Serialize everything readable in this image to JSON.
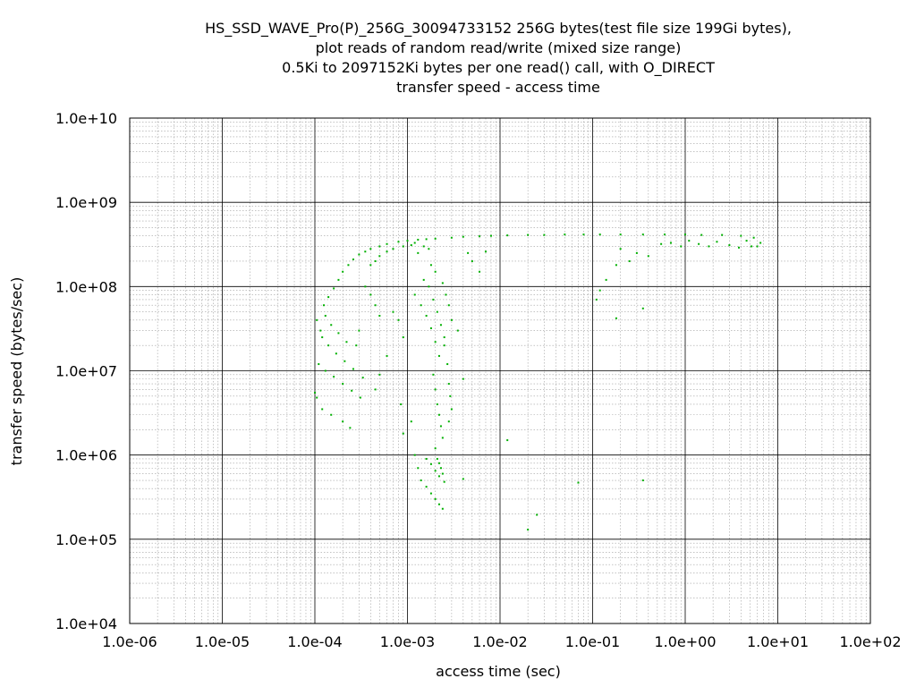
{
  "chart_data": {
    "type": "scatter",
    "title_lines": [
      "HS_SSD_WAVE_Pro(P)_256G_30094733152 256G bytes(test file size 199Gi bytes),",
      "plot reads of random read/write (mixed size range)",
      "0.5Ki to 2097152Ki bytes per one read() call, with O_DIRECT",
      "transfer speed - access time"
    ],
    "xlabel": "access time (sec)",
    "ylabel": "transfer speed (bytes/sec)",
    "x_scale": "log",
    "y_scale": "log",
    "xlim": [
      1e-06,
      100
    ],
    "ylim": [
      10000,
      10000000000
    ],
    "x_tick_labels": [
      "1.0e-06",
      "1.0e-05",
      "1.0e-04",
      "1.0e-03",
      "1.0e-02",
      "1.0e-01",
      "1.0e+00",
      "1.0e+01",
      "1.0e+02"
    ],
    "y_tick_labels": [
      "1.0e+04",
      "1.0e+05",
      "1.0e+06",
      "1.0e+07",
      "1.0e+08",
      "1.0e+09",
      "1.0e+10"
    ],
    "grid": true,
    "grid_minor": true,
    "point_color": "#00b000",
    "series": [
      {
        "points": [
          [
            0.0001,
            5500000
          ],
          [
            0.000105,
            4800000
          ],
          [
            0.00012,
            3500000
          ],
          [
            0.00015,
            3000000
          ],
          [
            0.0002,
            2500000
          ],
          [
            0.00024,
            2100000
          ],
          [
            0.00011,
            12000000
          ],
          [
            0.00013,
            10000000
          ],
          [
            0.00016,
            8500000
          ],
          [
            0.0002,
            7000000
          ],
          [
            0.00025,
            5800000
          ],
          [
            0.00031,
            4800000
          ],
          [
            0.00012,
            25000000
          ],
          [
            0.00014,
            20000000
          ],
          [
            0.00017,
            16000000
          ],
          [
            0.00021,
            13000000
          ],
          [
            0.00026,
            10500000
          ],
          [
            0.00033,
            8300000
          ],
          [
            0.000105,
            40000000
          ],
          [
            0.000115,
            30000000
          ],
          [
            0.00013,
            45000000
          ],
          [
            0.00015,
            35000000
          ],
          [
            0.00018,
            28000000
          ],
          [
            0.00022,
            22000000
          ],
          [
            0.000125,
            60000000
          ],
          [
            0.00014,
            75000000
          ],
          [
            0.00016,
            95000000
          ],
          [
            0.00018,
            120000000
          ],
          [
            0.0002,
            150000000
          ],
          [
            0.00023,
            180000000
          ],
          [
            0.00026,
            210000000
          ],
          [
            0.0003,
            240000000
          ],
          [
            0.00035,
            260000000
          ],
          [
            0.0004,
            280000000
          ],
          [
            0.0005,
            300000000
          ],
          [
            0.0006,
            320000000
          ],
          [
            0.0008,
            340000000
          ],
          [
            0.001,
            350000000
          ],
          [
            0.0013,
            360000000
          ],
          [
            0.0016,
            365000000
          ],
          [
            0.002,
            370000000
          ],
          [
            0.003,
            380000000
          ],
          [
            0.004,
            390000000
          ],
          [
            0.006,
            395000000
          ],
          [
            0.008,
            400000000
          ],
          [
            0.012,
            405000000
          ],
          [
            0.02,
            410000000
          ],
          [
            0.03,
            410000000
          ],
          [
            0.05,
            415000000
          ],
          [
            0.08,
            415000000
          ],
          [
            0.12,
            415000000
          ],
          [
            0.2,
            415000000
          ],
          [
            0.35,
            415000000
          ],
          [
            0.6,
            415000000
          ],
          [
            1.0,
            415000000
          ],
          [
            1.5,
            410000000
          ],
          [
            2.5,
            410000000
          ],
          [
            4.0,
            400000000
          ],
          [
            5.5,
            380000000
          ],
          [
            6.5,
            330000000
          ],
          [
            1.1,
            350000000
          ],
          [
            1.4,
            320000000
          ],
          [
            1.8,
            300000000
          ],
          [
            2.2,
            340000000
          ],
          [
            3.0,
            310000000
          ],
          [
            3.8,
            290000000
          ],
          [
            4.6,
            350000000
          ],
          [
            5.2,
            300000000
          ],
          [
            6.0,
            300000000
          ],
          [
            0.55,
            320000000
          ],
          [
            0.7,
            330000000
          ],
          [
            0.9,
            300000000
          ],
          [
            0.3,
            250000000
          ],
          [
            0.25,
            200000000
          ],
          [
            0.18,
            180000000
          ],
          [
            0.14,
            120000000
          ],
          [
            0.12,
            90000000
          ],
          [
            0.11,
            70000000
          ],
          [
            0.35,
            55000000
          ],
          [
            0.18,
            42000000
          ],
          [
            0.4,
            230000000
          ],
          [
            0.2,
            280000000
          ],
          [
            0.0012,
            80000000
          ],
          [
            0.0014,
            60000000
          ],
          [
            0.0016,
            45000000
          ],
          [
            0.0018,
            32000000
          ],
          [
            0.002,
            22000000
          ],
          [
            0.0022,
            15000000
          ],
          [
            0.0015,
            120000000
          ],
          [
            0.0017,
            100000000
          ],
          [
            0.0019,
            70000000
          ],
          [
            0.0021,
            50000000
          ],
          [
            0.0023,
            35000000
          ],
          [
            0.0025,
            25000000
          ],
          [
            0.0018,
            180000000
          ],
          [
            0.002,
            150000000
          ],
          [
            0.0024,
            110000000
          ],
          [
            0.0026,
            80000000
          ],
          [
            0.0028,
            60000000
          ],
          [
            0.003,
            40000000
          ],
          [
            0.0019,
            9000000
          ],
          [
            0.002,
            6000000
          ],
          [
            0.0021,
            4000000
          ],
          [
            0.0022,
            3000000
          ],
          [
            0.0023,
            2200000
          ],
          [
            0.0024,
            1600000
          ],
          [
            0.002,
            1200000
          ],
          [
            0.0021,
            900000
          ],
          [
            0.0022,
            800000
          ],
          [
            0.0023,
            700000
          ],
          [
            0.0024,
            600000
          ],
          [
            0.0014,
            500000
          ],
          [
            0.0016,
            420000
          ],
          [
            0.0018,
            350000
          ],
          [
            0.002,
            300000
          ],
          [
            0.0022,
            260000
          ],
          [
            0.0024,
            230000
          ],
          [
            0.0016,
            900000
          ],
          [
            0.0018,
            780000
          ],
          [
            0.002,
            650000
          ],
          [
            0.0022,
            560000
          ],
          [
            0.0025,
            480000
          ],
          [
            0.0025,
            20000000
          ],
          [
            0.0027,
            12000000
          ],
          [
            0.0028,
            7000000
          ],
          [
            0.0029,
            5000000
          ],
          [
            0.003,
            3500000
          ],
          [
            0.0028,
            2500000
          ],
          [
            0.0035,
            30000000
          ],
          [
            0.004,
            8000000
          ],
          [
            0.0045,
            250000000
          ],
          [
            0.005,
            200000000
          ],
          [
            0.006,
            150000000
          ],
          [
            0.007,
            260000000
          ],
          [
            0.0007,
            50000000
          ],
          [
            0.0008,
            40000000
          ],
          [
            0.0009,
            25000000
          ],
          [
            0.0006,
            15000000
          ],
          [
            0.0005,
            9000000
          ],
          [
            0.00045,
            6000000
          ],
          [
            0.00035,
            100000000
          ],
          [
            0.0004,
            80000000
          ],
          [
            0.00045,
            60000000
          ],
          [
            0.0005,
            45000000
          ],
          [
            0.0003,
            30000000
          ],
          [
            0.00028,
            20000000
          ],
          [
            0.0004,
            180000000
          ],
          [
            0.00045,
            200000000
          ],
          [
            0.0005,
            230000000
          ],
          [
            0.0006,
            260000000
          ],
          [
            0.0007,
            280000000
          ],
          [
            0.0009,
            300000000
          ],
          [
            0.0011,
            310000000
          ],
          [
            0.0012,
            330000000
          ],
          [
            0.0015,
            300000000
          ],
          [
            0.0017,
            280000000
          ],
          [
            0.0013,
            250000000
          ],
          [
            0.004,
            520000
          ],
          [
            0.02,
            130000
          ],
          [
            0.025,
            195000
          ],
          [
            0.07,
            470000
          ],
          [
            0.35,
            500000
          ],
          [
            0.012,
            1500000
          ],
          [
            0.0012,
            1000000
          ],
          [
            0.0013,
            700000
          ],
          [
            0.0009,
            1800000
          ],
          [
            0.0011,
            2500000
          ],
          [
            0.00085,
            4000000
          ]
        ]
      }
    ]
  }
}
